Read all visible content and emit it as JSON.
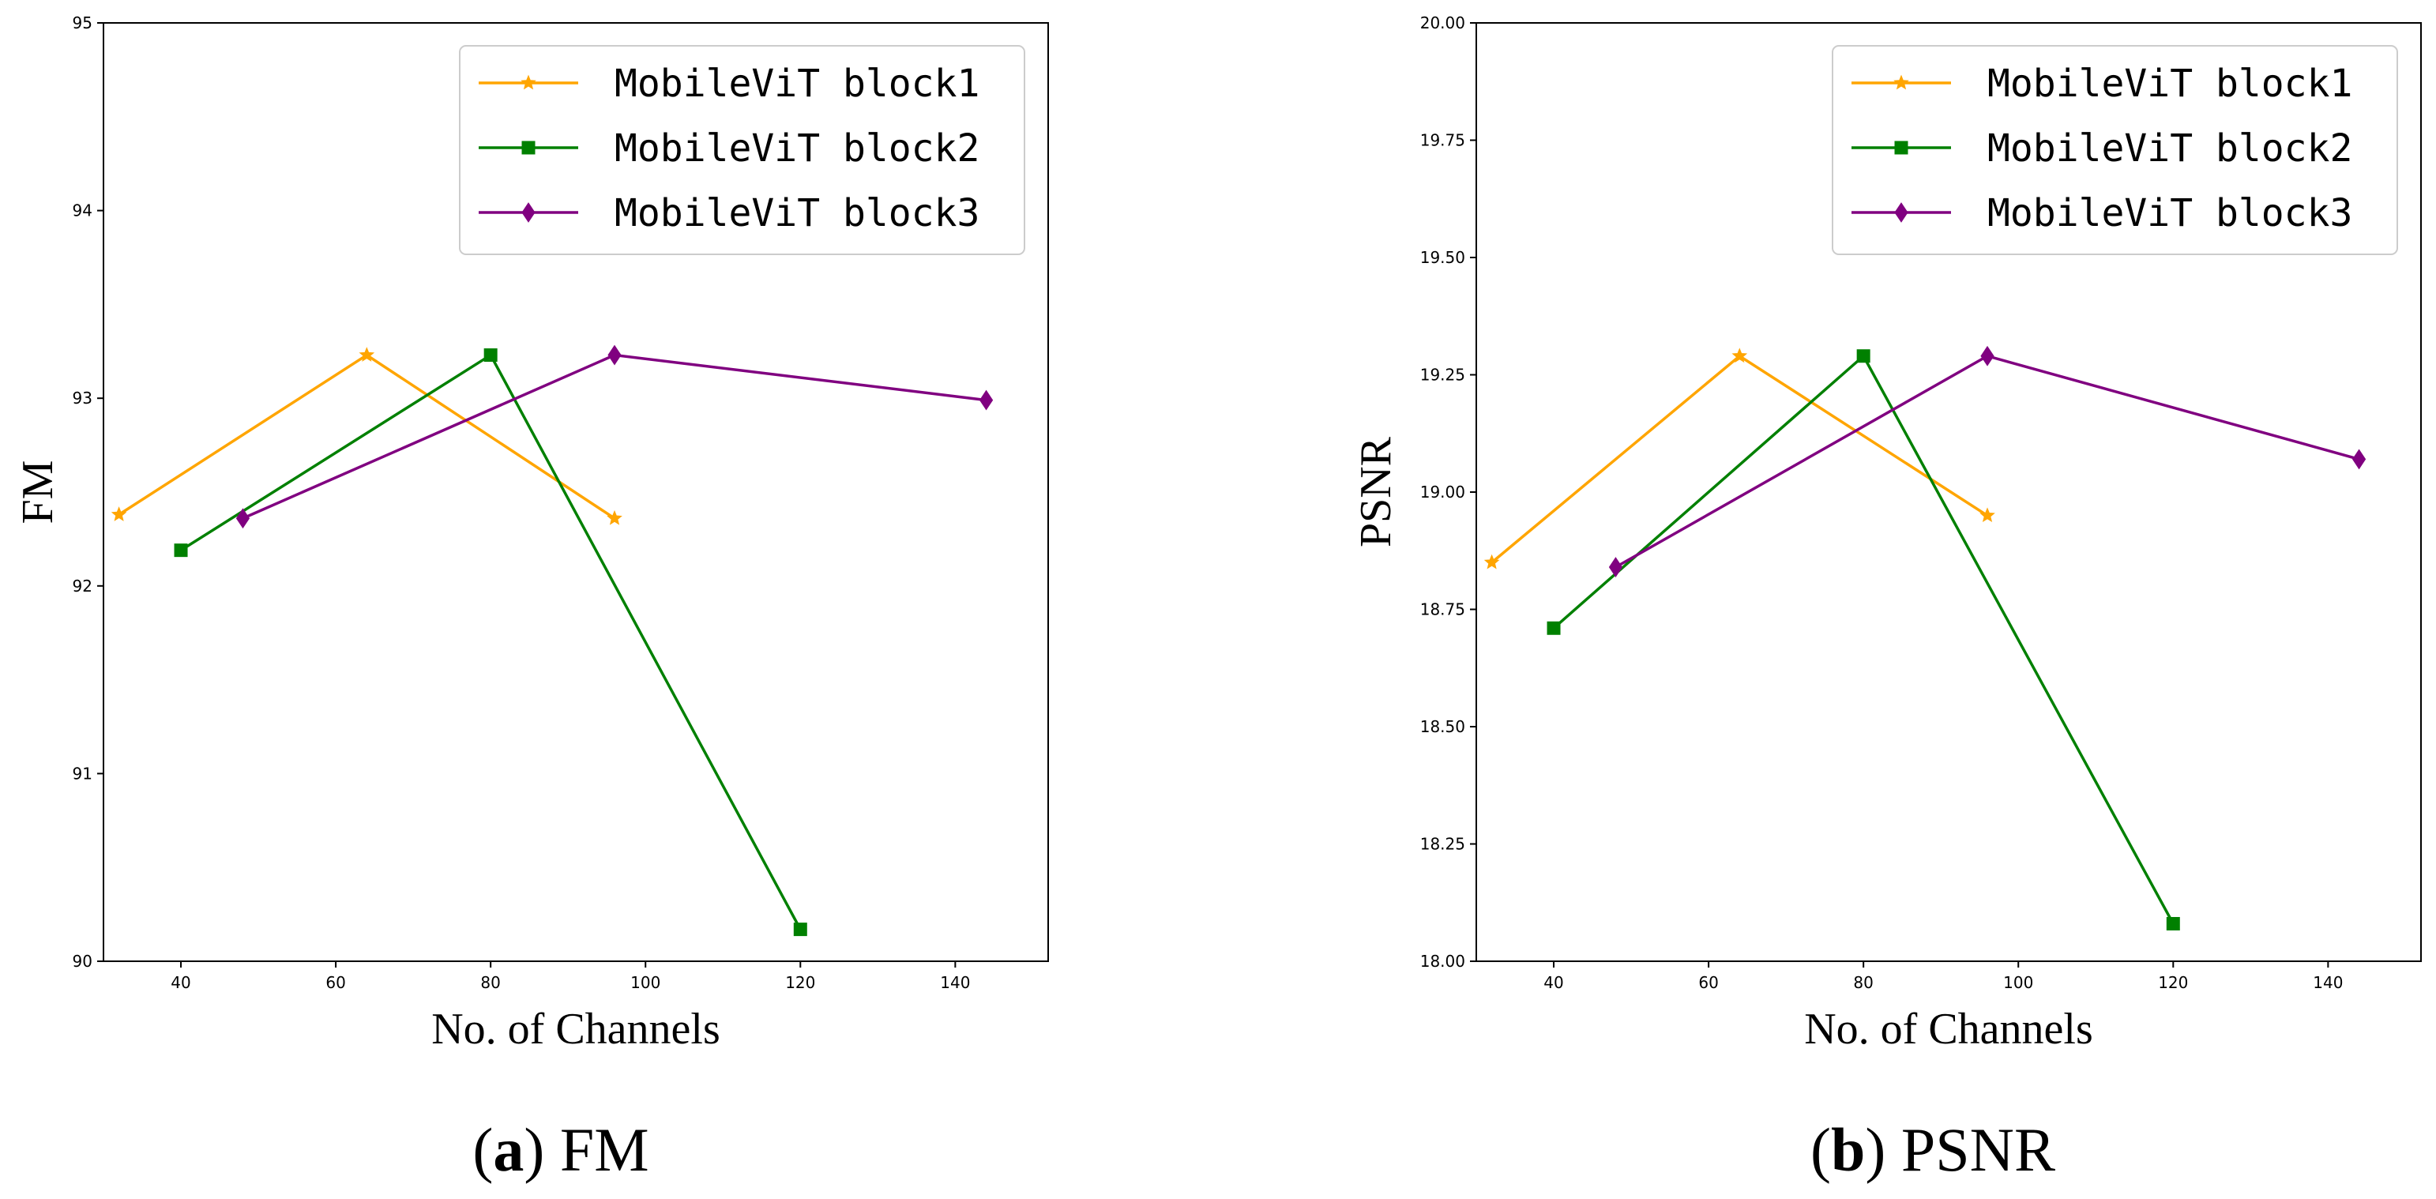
{
  "figure": {
    "captions": [
      {
        "letter": "a",
        "text": "FM"
      },
      {
        "letter": "b",
        "text": "PSNR"
      }
    ]
  },
  "chart_data": [
    {
      "type": "line",
      "title": "",
      "xlabel": "No. of Channels",
      "ylabel": "FM",
      "xlim": [
        30,
        152
      ],
      "ylim": [
        90,
        95
      ],
      "xticks": [
        40,
        60,
        80,
        100,
        120,
        140
      ],
      "yticks": [
        90,
        91,
        92,
        93,
        94,
        95
      ],
      "ytick_labels": [
        "90",
        "91",
        "92",
        "93",
        "94",
        "95"
      ],
      "legend_position": "top-right",
      "series": [
        {
          "name": "MobileViT block1",
          "color": "#FFA500",
          "marker": "star",
          "x": [
            32,
            64,
            96
          ],
          "y": [
            92.38,
            93.23,
            92.36
          ]
        },
        {
          "name": "MobileViT block2",
          "color": "#008000",
          "marker": "square",
          "x": [
            40,
            80,
            120
          ],
          "y": [
            92.19,
            93.23,
            90.17
          ]
        },
        {
          "name": "MobileViT block3",
          "color": "#800080",
          "marker": "diamond",
          "x": [
            48,
            96,
            144
          ],
          "y": [
            92.36,
            93.23,
            92.99
          ]
        }
      ]
    },
    {
      "type": "line",
      "title": "",
      "xlabel": "No. of Channels",
      "ylabel": "PSNR",
      "xlim": [
        30,
        152
      ],
      "ylim": [
        18.0,
        20.0
      ],
      "xticks": [
        40,
        60,
        80,
        100,
        120,
        140
      ],
      "yticks": [
        18.0,
        18.25,
        18.5,
        18.75,
        19.0,
        19.25,
        19.5,
        19.75,
        20.0
      ],
      "ytick_labels": [
        "18.00",
        "18.25",
        "18.50",
        "18.75",
        "19.00",
        "19.25",
        "19.50",
        "19.75",
        "20.00"
      ],
      "legend_position": "top-right",
      "series": [
        {
          "name": "MobileViT block1",
          "color": "#FFA500",
          "marker": "star",
          "x": [
            32,
            64,
            96
          ],
          "y": [
            18.85,
            19.29,
            18.95
          ]
        },
        {
          "name": "MobileViT block2",
          "color": "#008000",
          "marker": "square",
          "x": [
            40,
            80,
            120
          ],
          "y": [
            18.71,
            19.29,
            18.08
          ]
        },
        {
          "name": "MobileViT block3",
          "color": "#800080",
          "marker": "diamond",
          "x": [
            48,
            96,
            144
          ],
          "y": [
            18.84,
            19.29,
            19.07
          ]
        }
      ]
    }
  ]
}
